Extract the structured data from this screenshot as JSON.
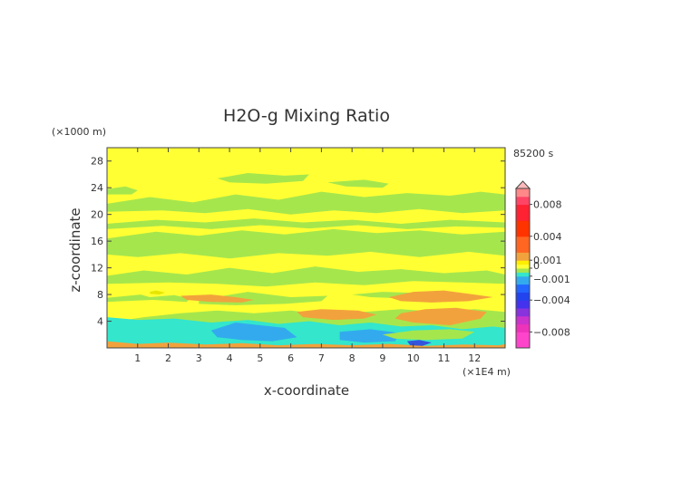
{
  "chart_data": {
    "type": "heatmap",
    "title": "H2O-g Mixing Ratio",
    "xlabel": "x-coordinate",
    "ylabel": "z-coordinate",
    "x_unit": "(×1E4 m)",
    "y_unit": "(×1000 m)",
    "time_label": "85200 s",
    "xlim": [
      0,
      13
    ],
    "ylim": [
      0,
      30
    ],
    "x_ticks": [
      "1",
      "2",
      "3",
      "4",
      "5",
      "6",
      "7",
      "8",
      "9",
      "10",
      "11",
      "12"
    ],
    "y_ticks": [
      "4",
      "8",
      "12",
      "16",
      "20",
      "24",
      "28"
    ],
    "grid": false,
    "colorbar": {
      "range": [
        -0.01,
        0.01
      ],
      "tick_labels": [
        "0.008",
        "0.004",
        "0.001",
        "0",
        "−0.001",
        "−0.004",
        "−0.008"
      ],
      "tick_values": [
        0.008,
        0.004,
        0.001,
        0,
        -0.001,
        -0.004,
        -0.008
      ]
    },
    "fill": {
      "background_level": 0.0003,
      "background_color": "#ffff33"
    },
    "regions": [
      {
        "level": -0.0004,
        "color": "#a6e64d",
        "x": [
          0.0,
          1.1,
          1.4,
          2.2,
          2.7,
          2.6,
          1.5,
          0.0
        ],
        "y": [
          7.5,
          8.0,
          7.6,
          7.9,
          7.4,
          6.9,
          7.2,
          6.9
        ]
      },
      {
        "level": -0.0004,
        "color": "#a6e64d",
        "x": [
          3.0,
          4.6,
          6.0,
          7.2,
          7.0,
          5.8,
          4.2,
          3.0
        ],
        "y": [
          7.2,
          8.4,
          7.6,
          7.8,
          7.0,
          6.6,
          6.4,
          6.6
        ]
      },
      {
        "level": -0.0004,
        "color": "#a6e64d",
        "x": [
          8.0,
          9.0,
          10.4,
          11.2,
          11.0,
          9.8,
          8.6
        ],
        "y": [
          8.0,
          8.4,
          8.2,
          8.0,
          7.6,
          7.4,
          7.6
        ]
      },
      {
        "level": -0.0004,
        "color": "#a6e64d",
        "x": [
          0.0,
          1.2,
          2.6,
          4.0,
          5.4,
          6.8,
          8.2,
          9.6,
          11.0,
          12.4,
          13.0,
          13.0,
          11.6,
          10.0,
          8.4,
          6.8,
          5.2,
          3.6,
          2.0,
          0.0
        ],
        "y": [
          10.8,
          11.6,
          11.0,
          12.0,
          11.2,
          12.2,
          11.4,
          11.8,
          11.2,
          11.6,
          11.0,
          9.6,
          9.8,
          10.0,
          9.4,
          9.8,
          9.2,
          9.6,
          9.8,
          9.6
        ]
      },
      {
        "level": -0.0004,
        "color": "#a6e64d",
        "x": [
          0.0,
          1.6,
          3.0,
          4.4,
          5.8,
          7.4,
          8.8,
          10.2,
          11.6,
          13.0,
          13.0,
          11.8,
          10.2,
          8.6,
          7.2,
          5.6,
          4.0,
          2.4,
          1.0,
          0.0
        ],
        "y": [
          16.4,
          17.4,
          16.8,
          17.6,
          17.0,
          17.8,
          17.2,
          17.6,
          17.0,
          17.4,
          13.8,
          14.4,
          13.6,
          14.4,
          13.8,
          14.2,
          13.4,
          14.2,
          13.6,
          14.0
        ]
      },
      {
        "level": -0.0004,
        "color": "#a6e64d",
        "x": [
          0.0,
          1.4,
          2.8,
          4.2,
          5.6,
          7.0,
          8.4,
          9.8,
          11.2,
          12.2,
          13.0,
          13.0,
          11.6,
          10.2,
          8.8,
          7.4,
          6.0,
          4.6,
          3.2,
          1.8,
          0.0
        ],
        "y": [
          21.6,
          22.6,
          21.8,
          23.0,
          22.2,
          23.4,
          22.6,
          23.2,
          22.8,
          23.4,
          23.0,
          20.6,
          20.2,
          20.8,
          20.2,
          20.6,
          20.0,
          20.8,
          20.2,
          20.6,
          20.4
        ]
      },
      {
        "level": -0.0004,
        "color": "#a6e64d",
        "x": [
          0.0,
          1.6,
          3.2,
          4.8,
          6.4,
          8.0,
          9.6,
          11.2,
          13.0,
          13.0,
          11.4,
          9.8,
          8.2,
          6.6,
          5.0,
          3.4,
          1.8,
          0.0
        ],
        "y": [
          18.6,
          19.2,
          18.8,
          19.4,
          18.8,
          19.2,
          18.6,
          19.2,
          18.8,
          18.0,
          18.2,
          17.8,
          18.4,
          17.9,
          18.4,
          17.8,
          18.3,
          17.8
        ]
      },
      {
        "level": -0.0004,
        "color": "#a6e64d",
        "x": [
          3.6,
          4.6,
          5.8,
          6.6,
          6.4,
          5.2,
          4.0
        ],
        "y": [
          25.4,
          26.2,
          25.8,
          26.0,
          25.0,
          24.6,
          24.8
        ]
      },
      {
        "level": -0.0004,
        "color": "#a6e64d",
        "x": [
          7.2,
          8.4,
          9.2,
          9.0,
          7.8
        ],
        "y": [
          24.8,
          25.2,
          24.6,
          24.0,
          24.2
        ]
      },
      {
        "level": -0.0004,
        "color": "#a6e64d",
        "x": [
          0.0,
          0.6,
          1.0,
          0.8,
          0.0
        ],
        "y": [
          23.8,
          24.2,
          23.6,
          23.0,
          23.0
        ]
      },
      {
        "level": -0.0004,
        "color": "#a6e64d",
        "x": [
          0.0,
          1.2,
          2.4,
          3.6,
          4.8,
          6.0,
          7.2,
          8.4,
          9.6,
          10.8,
          12.0,
          13.0,
          13.0,
          0.0
        ],
        "y": [
          3.8,
          4.6,
          5.2,
          5.6,
          5.2,
          5.6,
          5.0,
          5.4,
          5.8,
          5.4,
          5.8,
          5.4,
          0.0,
          0.0
        ]
      },
      {
        "level": -0.0008,
        "color": "#33e6cc",
        "x": [
          0.0,
          1.0,
          2.2,
          3.4,
          4.6,
          5.6,
          6.6,
          7.6,
          8.6,
          9.6,
          10.6,
          11.6,
          12.6,
          13.0,
          13.0,
          0.0
        ],
        "y": [
          4.6,
          4.2,
          4.4,
          3.8,
          4.2,
          3.6,
          4.0,
          3.4,
          3.8,
          3.2,
          3.4,
          2.8,
          3.2,
          3.0,
          0.0,
          0.0
        ]
      },
      {
        "level": -0.0015,
        "color": "#33aaee",
        "x": [
          3.4,
          4.2,
          5.0,
          5.8,
          6.2,
          5.4,
          4.4,
          3.6
        ],
        "y": [
          2.6,
          3.8,
          3.4,
          3.0,
          1.6,
          1.0,
          1.2,
          1.6
        ]
      },
      {
        "level": -0.0015,
        "color": "#33aaee",
        "x": [
          7.6,
          8.6,
          9.6,
          9.4,
          8.4,
          7.6
        ],
        "y": [
          2.4,
          2.8,
          2.2,
          1.0,
          0.8,
          1.2
        ]
      },
      {
        "level": -0.0008,
        "color": "#a6e64d",
        "x": [
          9.0,
          10.0,
          11.2,
          12.0,
          11.6,
          10.4,
          9.4
        ],
        "y": [
          2.0,
          2.6,
          2.8,
          2.4,
          1.4,
          1.2,
          1.4
        ]
      },
      {
        "level": 0.0012,
        "color": "#f2a23c",
        "x": [
          2.4,
          3.4,
          4.2,
          4.8,
          4.4,
          3.4,
          2.6
        ],
        "y": [
          7.8,
          8.0,
          7.6,
          7.2,
          6.8,
          6.9,
          7.2
        ]
      },
      {
        "level": 0.0012,
        "color": "#f2a23c",
        "x": [
          6.2,
          7.0,
          8.2,
          8.8,
          8.4,
          7.4,
          6.4
        ],
        "y": [
          5.4,
          5.8,
          5.6,
          5.0,
          4.4,
          4.2,
          4.6
        ]
      },
      {
        "level": 0.0012,
        "color": "#f2a23c",
        "x": [
          9.6,
          10.4,
          11.4,
          12.4,
          12.2,
          11.2,
          10.0,
          9.4
        ],
        "y": [
          5.2,
          5.8,
          6.0,
          5.4,
          4.4,
          3.4,
          3.8,
          4.4
        ]
      },
      {
        "level": 0.0012,
        "color": "#f2a23c",
        "x": [
          9.2,
          10.0,
          11.0,
          12.0,
          12.6,
          11.8,
          10.6,
          9.6
        ],
        "y": [
          7.6,
          8.4,
          8.6,
          8.0,
          7.6,
          7.0,
          6.8,
          7.0
        ]
      },
      {
        "level": 0.0012,
        "color": "#f2a23c",
        "x": [
          0.0,
          1.0,
          2.0,
          3.2,
          4.4,
          5.6,
          6.8,
          8.0,
          9.2,
          10.4,
          11.6,
          12.8,
          13.0,
          13.0,
          0.0
        ],
        "y": [
          1.0,
          0.6,
          0.8,
          0.5,
          0.7,
          0.4,
          0.6,
          0.4,
          0.6,
          0.3,
          0.5,
          0.4,
          0.6,
          0.0,
          0.0
        ]
      },
      {
        "level": 0.0005,
        "color": "#e6e600",
        "x": [
          1.4,
          1.6,
          1.9,
          1.7,
          1.4
        ],
        "y": [
          8.4,
          8.6,
          8.3,
          8.0,
          8.1
        ]
      },
      {
        "level": -0.0025,
        "color": "#3355dd",
        "x": [
          9.8,
          10.2,
          10.6,
          10.3,
          9.9
        ],
        "y": [
          1.0,
          1.2,
          0.8,
          0.3,
          0.4
        ]
      }
    ]
  }
}
